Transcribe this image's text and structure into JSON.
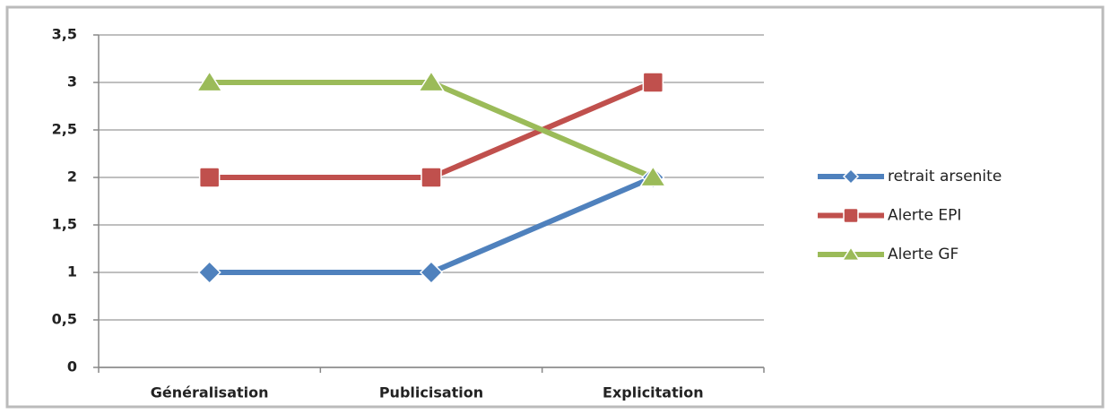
{
  "chart_data": {
    "type": "line",
    "categories": [
      "Généralisation",
      "Publicisation",
      "Explicitation"
    ],
    "series": [
      {
        "name": "retrait arsenite",
        "color": "#4f81bd",
        "marker": "diamond",
        "values": [
          1,
          1,
          2
        ]
      },
      {
        "name": "Alerte EPI",
        "color": "#c0504d",
        "marker": "square",
        "values": [
          2,
          2,
          3
        ]
      },
      {
        "name": "Alerte GF",
        "color": "#9bbb59",
        "marker": "triangle",
        "values": [
          3,
          3,
          2
        ]
      }
    ],
    "ylim": [
      0,
      3.5
    ],
    "yticks": [
      0,
      {
        "value": 0.5,
        "label": "0,5"
      },
      1,
      {
        "value": 1.5,
        "label": "1,5"
      },
      2,
      {
        "value": 2.5,
        "label": "2,5"
      },
      3,
      {
        "value": 3.5,
        "label": "3,5"
      }
    ],
    "grid": true,
    "legend": "right"
  }
}
